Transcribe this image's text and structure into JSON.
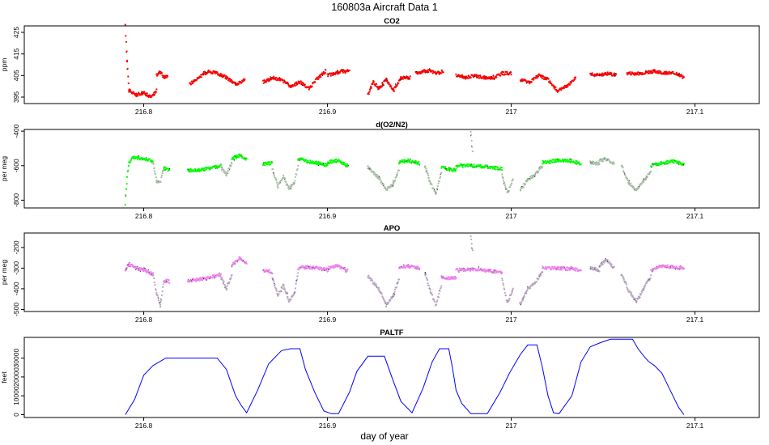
{
  "figure": {
    "title": "160803a   Aircraft Data 1",
    "xlabel": "day of year"
  },
  "colors": {
    "co2": "#ff0000",
    "o2n2": "#00ff00",
    "apo": "#ee82ee",
    "paltf": "#0000ff",
    "flagged": "#a9bfa9",
    "flagged_apo": "#b9a8c4",
    "shadow": "#000000"
  },
  "chart_data": [
    {
      "type": "scatter",
      "key": "co2",
      "title": "CO2",
      "ylabel": "ppm",
      "xlim": [
        216.735,
        217.135
      ],
      "ylim": [
        392,
        428
      ],
      "yticks": [
        395,
        405,
        415,
        425
      ],
      "xticks": [
        216.8,
        216.9,
        217.0,
        217.1
      ],
      "grid": false,
      "segments": [
        {
          "x": [
            216.79,
            216.791,
            216.792,
            216.796,
            216.8,
            216.804,
            216.807
          ],
          "y": [
            428,
            412,
            398,
            396,
            397,
            395,
            398
          ],
          "flag": false
        },
        {
          "x": [
            216.807,
            216.809,
            216.811,
            216.813
          ],
          "y": [
            405,
            407,
            404,
            405
          ],
          "flag": false
        },
        {
          "x": [
            216.825,
            216.83,
            216.835,
            216.84,
            216.845,
            216.85,
            216.855
          ],
          "y": [
            401,
            404,
            407,
            406,
            404,
            401,
            403
          ],
          "flag": false
        },
        {
          "x": [
            216.865,
            216.87,
            216.875,
            216.88,
            216.885,
            216.89,
            216.895,
            216.899
          ],
          "y": [
            402,
            404,
            403,
            400,
            402,
            399,
            404,
            407
          ],
          "flag": false
        },
        {
          "x": [
            216.9,
            216.904,
            216.908,
            216.912
          ],
          "y": [
            405,
            406,
            407,
            407
          ],
          "flag": false
        },
        {
          "x": [
            216.922,
            216.925,
            216.928,
            216.932,
            216.936,
            216.94,
            216.945
          ],
          "y": [
            396,
            402,
            399,
            403,
            398,
            404,
            404
          ],
          "flag": false
        },
        {
          "x": [
            216.948,
            216.952,
            216.956,
            216.96,
            216.963
          ],
          "y": [
            406,
            407,
            407,
            406,
            407
          ],
          "flag": false
        },
        {
          "x": [
            216.97,
            216.975,
            216.98,
            216.985,
            216.99,
            216.995,
            217.0
          ],
          "y": [
            405,
            404,
            405,
            404,
            404,
            406,
            406
          ],
          "flag": false
        },
        {
          "x": [
            217.005,
            217.01,
            217.015,
            217.02,
            217.025,
            217.03,
            217.035
          ],
          "y": [
            403,
            402,
            405,
            403,
            398,
            400,
            404
          ],
          "flag": false
        },
        {
          "x": [
            217.043,
            217.048,
            217.053,
            217.057
          ],
          "y": [
            406,
            405,
            406,
            405
          ],
          "flag": false
        },
        {
          "x": [
            217.063,
            217.07,
            217.078,
            217.085,
            217.09,
            217.094
          ],
          "y": [
            406,
            406,
            407,
            406,
            406,
            404
          ],
          "flag": false
        }
      ]
    },
    {
      "type": "scatter",
      "key": "o2n2",
      "title": "d(O2/N2)",
      "ylabel": "per meg",
      "xlim": [
        216.735,
        217.135
      ],
      "ylim": [
        -845,
        -390
      ],
      "yticks": [
        -400,
        -600,
        -800
      ],
      "xticks": [
        216.8,
        216.9,
        217.0,
        217.1
      ],
      "grid": false,
      "segments": [
        {
          "x": [
            216.79,
            216.791,
            216.792,
            216.794,
            216.797,
            216.801,
            216.805
          ],
          "y": [
            -820,
            -660,
            -580,
            -550,
            -555,
            -560,
            -575
          ],
          "flag": false
        },
        {
          "x": [
            216.805,
            216.807,
            216.809,
            216.811
          ],
          "y": [
            -580,
            -690,
            -700,
            -610
          ],
          "flag": true
        },
        {
          "x": [
            216.811,
            216.814
          ],
          "y": [
            -615,
            -625
          ],
          "flag": false
        },
        {
          "x": [
            216.824,
            216.83,
            216.836,
            216.842
          ],
          "y": [
            -630,
            -625,
            -615,
            -600
          ],
          "flag": false
        },
        {
          "x": [
            216.842,
            216.845,
            216.848
          ],
          "y": [
            -610,
            -650,
            -580
          ],
          "flag": true
        },
        {
          "x": [
            216.848,
            216.852,
            216.856
          ],
          "y": [
            -560,
            -540,
            -560
          ],
          "flag": false
        },
        {
          "x": [
            216.865,
            216.87
          ],
          "y": [
            -590,
            -585
          ],
          "flag": false
        },
        {
          "x": [
            216.87,
            216.873,
            216.876,
            216.879,
            216.882,
            216.884
          ],
          "y": [
            -620,
            -720,
            -660,
            -730,
            -700,
            -600
          ],
          "flag": true
        },
        {
          "x": [
            216.884,
            216.889,
            216.895,
            216.9
          ],
          "y": [
            -560,
            -575,
            -585,
            -600
          ],
          "flag": false
        },
        {
          "x": [
            216.9,
            216.905,
            216.911
          ],
          "y": [
            -580,
            -570,
            -600
          ],
          "flag": false
        },
        {
          "x": [
            216.922,
            216.928,
            216.932,
            216.936,
            216.939
          ],
          "y": [
            -610,
            -670,
            -740,
            -700,
            -620
          ],
          "flag": true
        },
        {
          "x": [
            216.939,
            216.944,
            216.95
          ],
          "y": [
            -580,
            -570,
            -585
          ],
          "flag": false
        },
        {
          "x": [
            216.953,
            216.956,
            216.959,
            216.962
          ],
          "y": [
            -600,
            -700,
            -760,
            -640
          ],
          "flag": true
        },
        {
          "x": [
            216.962,
            216.966,
            216.97
          ],
          "y": [
            -610,
            -620,
            -625
          ],
          "flag": false
        },
        {
          "x": [
            216.97,
            216.98,
            216.99,
            216.995
          ],
          "y": [
            -600,
            -600,
            -610,
            -620
          ],
          "flag": false
        },
        {
          "x": [
            216.978,
            216.979
          ],
          "y": [
            -400,
            -520
          ],
          "flag": true
        },
        {
          "x": [
            216.995,
            216.998,
            217.001
          ],
          "y": [
            -650,
            -760,
            -680
          ],
          "flag": true
        },
        {
          "x": [
            217.005,
            217.009,
            217.013,
            217.017
          ],
          "y": [
            -740,
            -680,
            -650,
            -600
          ],
          "flag": true
        },
        {
          "x": [
            217.017,
            217.025,
            217.033,
            217.038
          ],
          "y": [
            -580,
            -570,
            -575,
            -590
          ],
          "flag": false
        },
        {
          "x": [
            217.043,
            217.048
          ],
          "y": [
            -580,
            -590
          ],
          "flag": true
        },
        {
          "x": [
            217.048,
            217.052,
            217.056
          ],
          "y": [
            -570,
            -560,
            -590
          ],
          "flag": true
        },
        {
          "x": [
            217.06,
            217.064,
            217.068,
            217.072,
            217.076
          ],
          "y": [
            -600,
            -700,
            -740,
            -690,
            -630
          ],
          "flag": true
        },
        {
          "x": [
            217.076,
            217.082,
            217.088,
            217.094
          ],
          "y": [
            -600,
            -585,
            -575,
            -590
          ],
          "flag": false
        }
      ]
    },
    {
      "type": "scatter",
      "key": "apo",
      "title": "APO",
      "ylabel": "per meg",
      "xlim": [
        216.735,
        217.135
      ],
      "ylim": [
        -510,
        -130
      ],
      "yticks": [
        -200,
        -300,
        -400,
        -500
      ],
      "xticks": [
        216.8,
        216.9,
        217.0,
        217.1
      ],
      "grid": false,
      "segments": [
        {
          "x": [
            216.79,
            216.792,
            216.796,
            216.8,
            216.805
          ],
          "y": [
            -310,
            -280,
            -300,
            -310,
            -330
          ],
          "flag": false
        },
        {
          "x": [
            216.805,
            216.807,
            216.809,
            216.811
          ],
          "y": [
            -330,
            -420,
            -480,
            -360
          ],
          "flag": true
        },
        {
          "x": [
            216.811,
            216.814
          ],
          "y": [
            -360,
            -365
          ],
          "flag": false
        },
        {
          "x": [
            216.824,
            216.83,
            216.836,
            216.842
          ],
          "y": [
            -360,
            -355,
            -345,
            -330
          ],
          "flag": false
        },
        {
          "x": [
            216.842,
            216.845,
            216.848
          ],
          "y": [
            -340,
            -400,
            -330
          ],
          "flag": true
        },
        {
          "x": [
            216.848,
            216.852,
            216.856
          ],
          "y": [
            -290,
            -250,
            -280
          ],
          "flag": false
        },
        {
          "x": [
            216.865,
            216.87
          ],
          "y": [
            -310,
            -320
          ],
          "flag": false
        },
        {
          "x": [
            216.87,
            216.873,
            216.876,
            216.879,
            216.882,
            216.884
          ],
          "y": [
            -350,
            -430,
            -380,
            -460,
            -420,
            -330
          ],
          "flag": true
        },
        {
          "x": [
            216.884,
            216.889,
            216.895,
            216.9
          ],
          "y": [
            -300,
            -295,
            -300,
            -310
          ],
          "flag": false
        },
        {
          "x": [
            216.9,
            216.905,
            216.911
          ],
          "y": [
            -300,
            -290,
            -310
          ],
          "flag": false
        },
        {
          "x": [
            216.922,
            216.928,
            216.932,
            216.936,
            216.939
          ],
          "y": [
            -340,
            -400,
            -480,
            -430,
            -350
          ],
          "flag": true
        },
        {
          "x": [
            216.939,
            216.944,
            216.95
          ],
          "y": [
            -300,
            -290,
            -300
          ],
          "flag": false
        },
        {
          "x": [
            216.953,
            216.956,
            216.959,
            216.962
          ],
          "y": [
            -320,
            -410,
            -480,
            -380
          ],
          "flag": true
        },
        {
          "x": [
            216.962,
            216.966,
            216.97
          ],
          "y": [
            -340,
            -350,
            -345
          ],
          "flag": false
        },
        {
          "x": [
            216.97,
            216.98,
            216.99,
            216.995
          ],
          "y": [
            -310,
            -305,
            -315,
            -320
          ],
          "flag": false
        },
        {
          "x": [
            216.978,
            216.979
          ],
          "y": [
            -140,
            -220
          ],
          "flag": true
        },
        {
          "x": [
            216.995,
            216.998,
            217.001
          ],
          "y": [
            -350,
            -470,
            -400
          ],
          "flag": true
        },
        {
          "x": [
            217.005,
            217.009,
            217.013,
            217.017
          ],
          "y": [
            -470,
            -400,
            -370,
            -320
          ],
          "flag": true
        },
        {
          "x": [
            217.017,
            217.025,
            217.033,
            217.038
          ],
          "y": [
            -300,
            -300,
            -305,
            -310
          ],
          "flag": false
        },
        {
          "x": [
            217.043,
            217.048
          ],
          "y": [
            -300,
            -310
          ],
          "flag": true
        },
        {
          "x": [
            217.048,
            217.052,
            217.056
          ],
          "y": [
            -290,
            -260,
            -300
          ],
          "flag": true
        },
        {
          "x": [
            217.06,
            217.064,
            217.068,
            217.072,
            217.076
          ],
          "y": [
            -330,
            -410,
            -460,
            -400,
            -340
          ],
          "flag": true
        },
        {
          "x": [
            217.076,
            217.082,
            217.088,
            217.094
          ],
          "y": [
            -310,
            -290,
            -295,
            -300
          ],
          "flag": false
        }
      ]
    },
    {
      "type": "line",
      "key": "paltf",
      "title": "PALTF",
      "ylabel": "feet",
      "xlim": [
        216.735,
        217.135
      ],
      "ylim": [
        -1500,
        41000
      ],
      "yticks": [
        0,
        10000,
        20000,
        30000
      ],
      "xticks": [
        216.8,
        216.9,
        217.0,
        217.1
      ],
      "grid": false,
      "x": [
        216.79,
        216.795,
        216.8,
        216.805,
        216.812,
        216.84,
        216.845,
        216.85,
        216.853,
        216.856,
        216.862,
        216.868,
        216.875,
        216.88,
        216.885,
        216.888,
        216.893,
        216.898,
        216.902,
        216.906,
        216.912,
        216.916,
        216.922,
        216.925,
        216.931,
        216.935,
        216.94,
        216.946,
        216.952,
        216.957,
        216.961,
        216.966,
        216.968,
        216.97,
        216.973,
        216.978,
        216.983,
        216.987,
        216.994,
        216.999,
        217.005,
        217.009,
        217.014,
        217.017,
        217.02,
        217.023,
        217.026,
        217.033,
        217.038,
        217.043,
        217.048,
        217.054,
        217.062,
        217.066,
        217.069,
        217.073,
        217.075,
        217.078,
        217.082,
        217.085,
        217.088,
        217.091,
        217.094
      ],
      "y": [
        0,
        8000,
        21000,
        26000,
        30000,
        30000,
        24000,
        10000,
        5000,
        1000,
        13000,
        27000,
        34000,
        35000,
        35000,
        24000,
        12000,
        2000,
        500,
        500,
        12000,
        23000,
        31000,
        31000,
        31000,
        20000,
        7000,
        1000,
        14000,
        28000,
        35000,
        35000,
        25000,
        13000,
        6000,
        500,
        500,
        500,
        12000,
        22000,
        32000,
        37000,
        37000,
        25000,
        10000,
        1000,
        500,
        10000,
        28000,
        36000,
        38000,
        40000,
        40000,
        40000,
        35000,
        30000,
        28000,
        26000,
        22000,
        16000,
        10000,
        4000,
        0
      ]
    }
  ]
}
